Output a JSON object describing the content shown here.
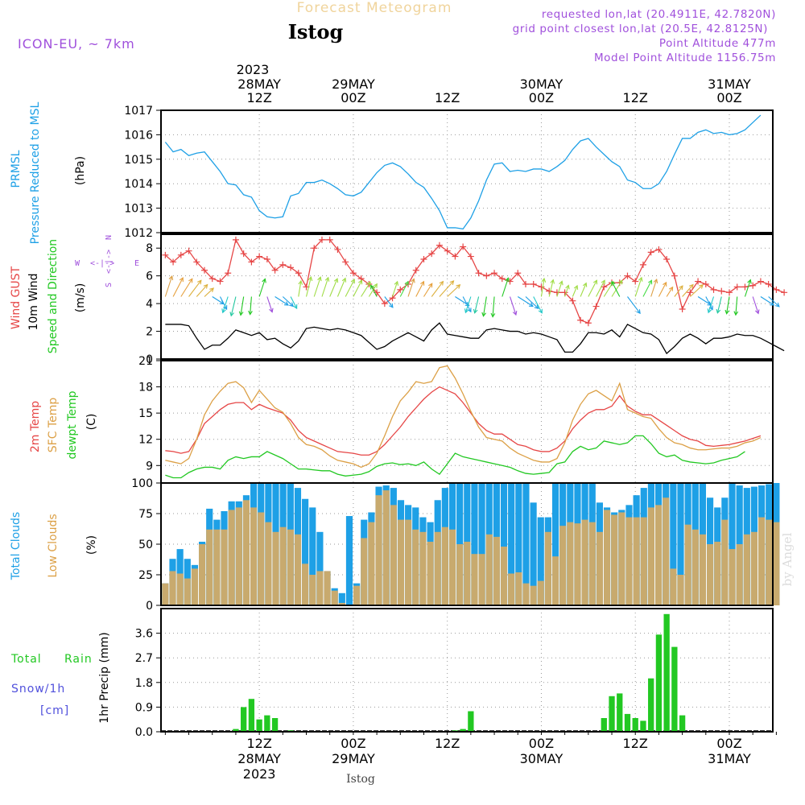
{
  "header": {
    "title": "Forecast Meteogram",
    "location": "Istog",
    "model": "ICON-EU, ~ 7km",
    "requested": "requested lon,lat (20.4911E, 42.7820N)",
    "gridpoint": "grid point closest lon,lat (20.5E, 42.8125N)",
    "point_alt": "Point Altitude 477m",
    "model_alt": "Model Point Altitude 1156.75m",
    "footer_location": "Istog",
    "watermark": "by Angel"
  },
  "time_axis": {
    "year_top": "2023",
    "top_labels": [
      {
        "h": 12,
        "date": "28MAY",
        "time": "12Z"
      },
      {
        "h": 24,
        "date": "29MAY",
        "time": "00Z"
      },
      {
        "h": 36,
        "date": "",
        "time": "12Z"
      },
      {
        "h": 48,
        "date": "30MAY",
        "time": "00Z"
      },
      {
        "h": 60,
        "date": "",
        "time": "12Z"
      },
      {
        "h": 72,
        "date": "31MAY",
        "time": "00Z"
      }
    ],
    "bottom_labels": [
      {
        "h": 12,
        "time": "12Z",
        "date": "28MAY",
        "year": "2023"
      },
      {
        "h": 24,
        "time": "00Z",
        "date": "29MAY",
        "year": ""
      },
      {
        "h": 36,
        "time": "12Z",
        "date": "",
        "year": ""
      },
      {
        "h": 48,
        "time": "00Z",
        "date": "30MAY",
        "year": ""
      },
      {
        "h": 60,
        "time": "12Z",
        "date": "",
        "year": ""
      },
      {
        "h": 72,
        "time": "00Z",
        "date": "31MAY",
        "year": ""
      }
    ]
  },
  "panels": {
    "pressure": {
      "label1": "PRMSL",
      "label2": "Pressure Reduced to MSL",
      "unit": "(hPa)"
    },
    "wind": {
      "label1": "Wind GUST",
      "label2": "10m Wind",
      "label3": "Speed and Direction",
      "unit": "(m/s)",
      "compass": {
        "w": "W",
        "e": "E",
        "n": "N",
        "s": "S"
      }
    },
    "temp": {
      "label1": "2m Temp",
      "label2": "SFC Temp",
      "label3": "dewpt Temp",
      "unit": "(C)"
    },
    "clouds": {
      "label1": "Total Clouds",
      "label2": "Low Clouds",
      "unit": "(%)"
    },
    "precip": {
      "label1": "Total",
      "label2": "Rain",
      "label3": "Snow/1h",
      "label4": "[cm]",
      "ylabel": "1hr Precip (mm)"
    }
  },
  "colors": {
    "pressure": "#1ea0e6",
    "gust": "#e64646",
    "wind10m": "#000000",
    "t2m": "#e64646",
    "tsfc": "#dca046",
    "dewpt": "#22c822",
    "total_clouds": "#1ea0e6",
    "low_clouds": "#c8aa6e",
    "precip": "#22c822",
    "purple": "#a050dc"
  },
  "chart_data": [
    {
      "type": "line",
      "name": "pressure",
      "x_range_hours": [
        0,
        78
      ],
      "ylim": [
        1012,
        1017
      ],
      "yticks": [
        1012,
        1013,
        1014,
        1015,
        1016,
        1017
      ],
      "series": [
        {
          "name": "PRMSL",
          "values": [
            1015.7,
            1015.3,
            1015.4,
            1015.15,
            1015.25,
            1015.3,
            1014.9,
            1014.5,
            1014.0,
            1013.95,
            1013.55,
            1013.45,
            1012.9,
            1012.65,
            1012.6,
            1012.65,
            1013.5,
            1013.6,
            1014.05,
            1014.05,
            1014.15,
            1014.0,
            1013.8,
            1013.55,
            1013.5,
            1013.65,
            1014.05,
            1014.45,
            1014.75,
            1014.85,
            1014.7,
            1014.4,
            1014.05,
            1013.85,
            1013.4,
            1012.9,
            1012.2,
            1012.2,
            1012.15,
            1012.6,
            1013.3,
            1014.15,
            1014.8,
            1014.85,
            1014.5,
            1014.55,
            1014.5,
            1014.6,
            1014.6,
            1014.5,
            1014.7,
            1014.95,
            1015.4,
            1015.75,
            1015.85,
            1015.5,
            1015.2,
            1014.9,
            1014.7,
            1014.15,
            1014.05,
            1013.8,
            1013.8,
            1014.0,
            1014.5,
            1015.2,
            1015.85,
            1015.85,
            1016.1,
            1016.2,
            1016.05,
            1016.1,
            1016.0,
            1016.05,
            1016.2,
            1016.5,
            1016.8
          ]
        }
      ]
    },
    {
      "type": "line",
      "name": "wind",
      "x_range_hours": [
        0,
        78
      ],
      "ylim": [
        0,
        9
      ],
      "yticks": [
        0,
        2,
        4,
        6,
        8
      ],
      "series": [
        {
          "name": "Wind GUST",
          "values": [
            7.5,
            7.0,
            7.5,
            7.8,
            7.0,
            6.4,
            5.8,
            5.6,
            6.2,
            8.6,
            7.6,
            7.0,
            7.4,
            7.2,
            6.4,
            6.8,
            6.6,
            6.2,
            5.2,
            8.0,
            8.6,
            8.6,
            7.9,
            7.0,
            6.2,
            5.8,
            5.4,
            4.8,
            4.0,
            4.4,
            5.0,
            5.4,
            6.4,
            7.2,
            7.6,
            8.2,
            7.8,
            7.4,
            8.1,
            7.4,
            6.2,
            6.0,
            6.2,
            5.8,
            5.6,
            6.2,
            5.4,
            5.4,
            5.2,
            4.9,
            4.8,
            4.8,
            4.2,
            2.8,
            2.6,
            3.8,
            5.2,
            5.5,
            5.5,
            6.0,
            5.6,
            6.8,
            7.7,
            7.9,
            7.2,
            6.0,
            3.6,
            4.8,
            5.6,
            5.4,
            5.0,
            4.9,
            4.8,
            5.2,
            5.2,
            5.3,
            5.6,
            5.4,
            5.0,
            4.8
          ]
        },
        {
          "name": "10m Wind",
          "values": [
            2.5,
            2.5,
            2.5,
            2.4,
            1.5,
            0.7,
            1.0,
            1.0,
            1.5,
            2.1,
            1.9,
            1.7,
            1.9,
            1.4,
            1.5,
            1.1,
            0.8,
            1.3,
            2.2,
            2.3,
            2.2,
            2.1,
            2.2,
            2.1,
            1.9,
            1.7,
            1.2,
            0.7,
            0.9,
            1.3,
            1.6,
            1.9,
            1.6,
            1.3,
            2.1,
            2.6,
            1.8,
            1.7,
            1.6,
            1.5,
            1.5,
            2.1,
            2.2,
            2.1,
            2.0,
            2.0,
            1.8,
            1.9,
            1.8,
            1.6,
            1.4,
            0.5,
            0.5,
            1.1,
            1.9,
            1.9,
            1.8,
            2.1,
            1.6,
            2.5,
            2.2,
            1.9,
            1.8,
            1.4,
            0.4,
            0.9,
            1.5,
            1.8,
            1.5,
            1.1,
            1.5,
            1.5,
            1.6,
            1.8,
            1.7,
            1.7,
            1.5,
            1.2,
            0.9,
            0.6
          ]
        }
      ]
    },
    {
      "type": "line",
      "name": "temperature",
      "x_range_hours": [
        0,
        78
      ],
      "ylim": [
        7,
        21
      ],
      "yticks": [
        9,
        12,
        15,
        18,
        21
      ],
      "series": [
        {
          "name": "2m Temp",
          "values": [
            10.7,
            10.6,
            10.4,
            10.6,
            12.0,
            13.8,
            14.6,
            15.4,
            16.0,
            16.2,
            16.2,
            15.4,
            16.0,
            15.6,
            15.3,
            15.0,
            14.2,
            13.0,
            12.2,
            11.8,
            11.4,
            11.0,
            10.6,
            10.5,
            10.4,
            10.2,
            10.2,
            10.6,
            11.4,
            12.4,
            13.4,
            14.6,
            15.6,
            16.6,
            17.4,
            18.0,
            17.6,
            17.2,
            16.2,
            15.0,
            13.8,
            13.0,
            12.6,
            12.6,
            12.0,
            11.4,
            11.2,
            10.8,
            10.6,
            10.6,
            11.0,
            11.8,
            13.2,
            14.2,
            15.0,
            15.4,
            15.4,
            15.8,
            17.0,
            15.8,
            15.2,
            14.8,
            14.8,
            14.2,
            13.6,
            13.0,
            12.4,
            12.0,
            11.8,
            11.3,
            11.2,
            11.3,
            11.4,
            11.6,
            11.8,
            12.1,
            12.4
          ]
        },
        {
          "name": "SFC Temp",
          "values": [
            9.6,
            9.4,
            9.2,
            9.8,
            12.0,
            14.8,
            16.4,
            17.5,
            18.4,
            18.6,
            17.9,
            16.2,
            17.6,
            16.6,
            15.6,
            15.1,
            13.8,
            12.2,
            11.4,
            11.2,
            10.8,
            10.1,
            9.6,
            9.4,
            9.2,
            8.8,
            9.2,
            10.4,
            12.4,
            14.6,
            16.4,
            17.4,
            18.6,
            18.4,
            18.6,
            20.2,
            20.4,
            19.0,
            17.2,
            15.2,
            13.4,
            12.2,
            12.0,
            11.8,
            11.0,
            10.4,
            10.0,
            9.6,
            9.4,
            9.4,
            9.8,
            11.6,
            14.2,
            16.0,
            17.2,
            17.6,
            17.0,
            16.4,
            18.4,
            15.4,
            15.0,
            14.6,
            14.4,
            13.2,
            12.2,
            11.6,
            11.4,
            11.0,
            10.8,
            10.8,
            10.9,
            11.0,
            11.0,
            11.2,
            11.6,
            11.8,
            12.2
          ]
        },
        {
          "name": "dewpt Temp",
          "values": [
            7.9,
            7.6,
            7.6,
            8.2,
            8.6,
            8.8,
            8.8,
            8.6,
            9.6,
            10.0,
            9.8,
            10.0,
            10.0,
            10.6,
            10.2,
            9.8,
            9.2,
            8.6,
            8.6,
            8.5,
            8.4,
            8.4,
            8.0,
            7.8,
            7.9,
            8.0,
            8.3,
            8.9,
            9.2,
            9.3,
            9.1,
            9.2,
            9.0,
            9.4,
            8.6,
            8.0,
            9.2,
            10.4,
            10.0,
            9.8,
            9.6,
            9.4,
            9.2,
            9.0,
            8.8,
            8.4,
            8.1,
            8.0,
            8.1,
            8.2,
            9.2,
            9.4,
            10.6,
            11.2,
            10.8,
            11.0,
            11.8,
            11.6,
            11.4,
            11.6,
            12.4,
            12.4,
            11.5,
            10.4,
            10.0,
            10.2,
            9.6,
            9.4,
            9.3,
            9.2,
            9.3,
            9.6,
            9.8,
            10.0,
            10.6
          ]
        }
      ]
    },
    {
      "type": "bar",
      "name": "clouds",
      "x_range_hours": [
        0,
        78
      ],
      "ylim": [
        0,
        100
      ],
      "yticks": [
        0,
        25,
        50,
        75,
        100
      ],
      "series": [
        {
          "name": "Total Clouds",
          "values": [
            18,
            38,
            46,
            38,
            33,
            52,
            79,
            70,
            77,
            85,
            85,
            90,
            100,
            100,
            100,
            100,
            100,
            100,
            96,
            87,
            80,
            60,
            28,
            14,
            10,
            73,
            18,
            70,
            76,
            97,
            98,
            96,
            86,
            82,
            80,
            72,
            68,
            86,
            96,
            100,
            100,
            100,
            100,
            100,
            100,
            100,
            100,
            100,
            100,
            100,
            84,
            72,
            72,
            100,
            100,
            100,
            100,
            100,
            100,
            84,
            80,
            76,
            78,
            82,
            90,
            96,
            100,
            100,
            100,
            100,
            100,
            100,
            100,
            100,
            88,
            80,
            88,
            100,
            98,
            96,
            97,
            98,
            99,
            100
          ]
        },
        {
          "name": "Low Clouds",
          "values": [
            18,
            28,
            26,
            22,
            30,
            50,
            62,
            62,
            62,
            78,
            80,
            86,
            80,
            76,
            68,
            60,
            64,
            62,
            58,
            34,
            25,
            28,
            28,
            12,
            2,
            0,
            16,
            55,
            68,
            90,
            94,
            82,
            70,
            70,
            62,
            60,
            52,
            60,
            64,
            62,
            50,
            52,
            42,
            42,
            58,
            56,
            48,
            26,
            27,
            18,
            16,
            20,
            60,
            40,
            65,
            68,
            67,
            70,
            68,
            60,
            78,
            74,
            76,
            72,
            72,
            72,
            80,
            82,
            88,
            30,
            25,
            66,
            62,
            58,
            50,
            52,
            70,
            46,
            50,
            58,
            60,
            72,
            70,
            68
          ]
        }
      ]
    },
    {
      "type": "bar",
      "name": "precipitation",
      "x_range_hours": [
        0,
        78
      ],
      "ylim": [
        0,
        4.5
      ],
      "yticks": [
        0,
        0.9,
        1.8,
        2.7,
        3.6
      ],
      "series": [
        {
          "name": "Total Rain",
          "points": [
            {
              "h": 9,
              "v": 0.1
            },
            {
              "h": 10,
              "v": 0.9
            },
            {
              "h": 11,
              "v": 1.2
            },
            {
              "h": 12,
              "v": 0.45
            },
            {
              "h": 13,
              "v": 0.6
            },
            {
              "h": 14,
              "v": 0.5
            },
            {
              "h": 16,
              "v": 0.05
            },
            {
              "h": 37,
              "v": 0.05
            },
            {
              "h": 38,
              "v": 0.1
            },
            {
              "h": 39,
              "v": 0.75
            },
            {
              "h": 56,
              "v": 0.5
            },
            {
              "h": 57,
              "v": 1.3
            },
            {
              "h": 58,
              "v": 1.4
            },
            {
              "h": 59,
              "v": 0.65
            },
            {
              "h": 60,
              "v": 0.5
            },
            {
              "h": 61,
              "v": 0.4
            },
            {
              "h": 62,
              "v": 1.95
            },
            {
              "h": 63,
              "v": 3.55
            },
            {
              "h": 64,
              "v": 4.3
            },
            {
              "h": 65,
              "v": 3.1
            },
            {
              "h": 66,
              "v": 0.6
            }
          ]
        }
      ]
    }
  ]
}
